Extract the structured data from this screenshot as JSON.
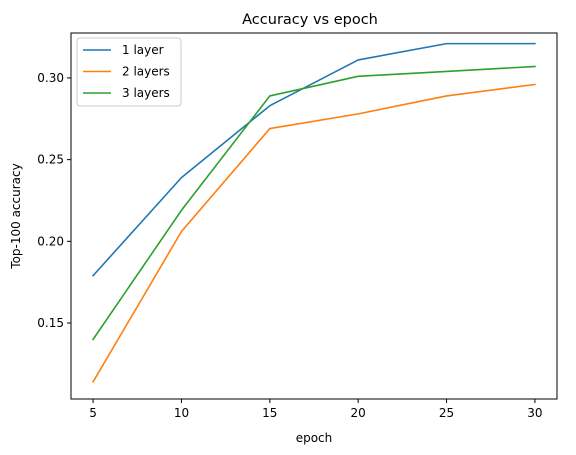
{
  "chart_data": {
    "type": "line",
    "title": "Accuracy vs epoch",
    "xlabel": "epoch",
    "ylabel": "Top-100 accuracy",
    "x": [
      5,
      10,
      15,
      20,
      25,
      30
    ],
    "xlim": [
      3.75,
      31.25
    ],
    "ylim": [
      0.1035,
      0.3275
    ],
    "xticks": [
      5,
      10,
      15,
      20,
      25,
      30
    ],
    "xtick_labels": [
      "5",
      "10",
      "15",
      "20",
      "25",
      "30"
    ],
    "yticks": [
      0.15,
      0.2,
      0.25,
      0.3
    ],
    "ytick_labels": [
      "0.15",
      "0.20",
      "0.25",
      "0.30"
    ],
    "grid": false,
    "legend_position": "upper-left",
    "series": [
      {
        "name": "1 layer",
        "color": "#1f77b4",
        "values": [
          0.179,
          0.239,
          0.283,
          0.311,
          0.321,
          0.321
        ]
      },
      {
        "name": "2 layers",
        "color": "#ff7f0e",
        "values": [
          0.114,
          0.206,
          0.269,
          0.278,
          0.289,
          0.296
        ]
      },
      {
        "name": "3 layers",
        "color": "#2ca02c",
        "values": [
          0.14,
          0.219,
          0.289,
          0.301,
          0.304,
          0.307
        ]
      }
    ]
  }
}
